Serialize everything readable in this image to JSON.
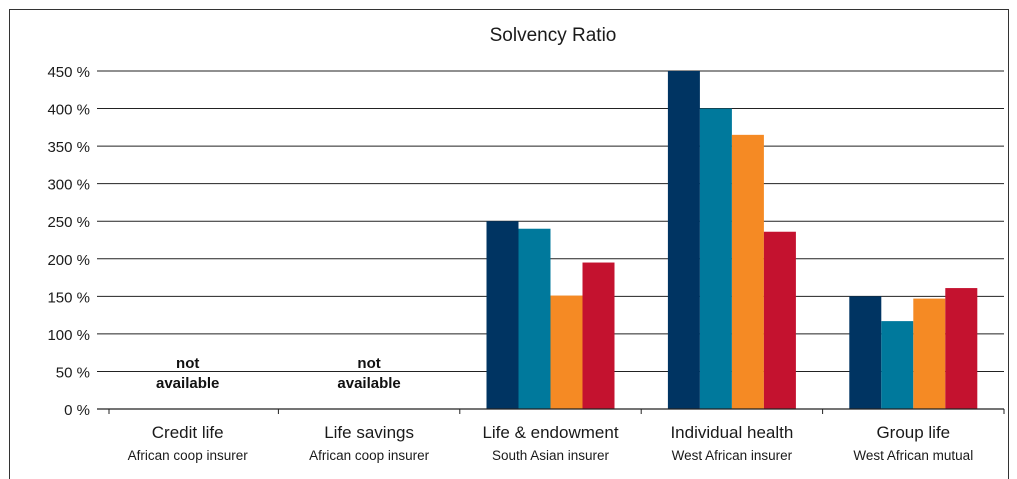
{
  "chart_data": {
    "type": "bar",
    "title": "Solvency Ratio",
    "xlabel": "",
    "ylabel": "",
    "ylim": [
      0,
      450
    ],
    "ytick_step": 50,
    "ytick_suffix": " %",
    "grid": true,
    "legend": "none",
    "categories": [
      {
        "name": "Credit life",
        "subtitle": "African coop insurer"
      },
      {
        "name": "Life savings",
        "subtitle": "African coop insurer"
      },
      {
        "name": "Life & endowment",
        "subtitle": "South Asian insurer"
      },
      {
        "name": "Individual health",
        "subtitle": "West African insurer"
      },
      {
        "name": "Group life",
        "subtitle": "West African mutual"
      }
    ],
    "series_colors": [
      "#003462",
      "#00799c",
      "#f58a24",
      "#c4122f"
    ],
    "series": [
      {
        "values": [
          null,
          null,
          250,
          450,
          150
        ]
      },
      {
        "values": [
          null,
          null,
          240,
          400,
          117
        ]
      },
      {
        "values": [
          null,
          null,
          151,
          365,
          147
        ]
      },
      {
        "values": [
          null,
          null,
          195,
          236,
          161
        ]
      }
    ],
    "annotations": [
      {
        "category_index": 0,
        "lines": [
          "not",
          "available"
        ]
      },
      {
        "category_index": 1,
        "lines": [
          "not",
          "available"
        ]
      }
    ]
  }
}
